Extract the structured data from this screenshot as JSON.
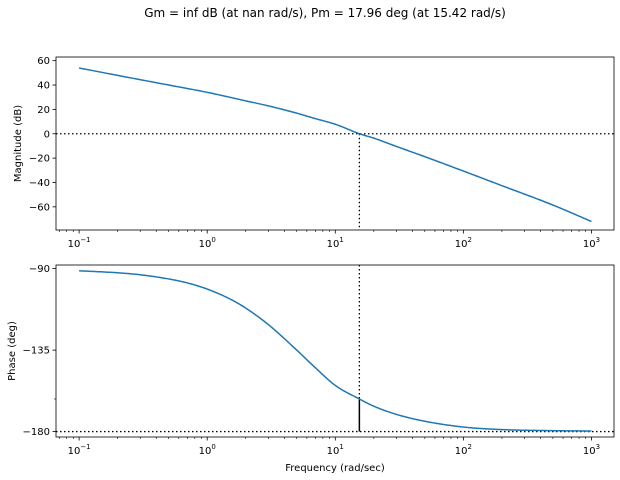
{
  "chart_data": {
    "title": "Gm = inf dB (at nan rad/s), Pm = 17.96 deg (at 15.42 rad/s)",
    "type": "line",
    "x_scale": "log",
    "xlabel": "Frequency (rad/sec)",
    "xlim": [
      0.066,
      1500
    ],
    "x_ticks": [
      {
        "value": 0.1,
        "base": "10",
        "exp": "−1"
      },
      {
        "value": 1,
        "base": "10",
        "exp": "0"
      },
      {
        "value": 10,
        "base": "10",
        "exp": "1"
      },
      {
        "value": 100,
        "base": "10",
        "exp": "2"
      },
      {
        "value": 1000,
        "base": "10",
        "exp": "3"
      }
    ],
    "line_color": "#1f77b4",
    "gain_crossover_freq": 15.42,
    "phase_margin_deg": 17.96,
    "panels": [
      {
        "id": "magnitude",
        "ylabel": "Magnitude (dB)",
        "ylim": [
          -79,
          63
        ],
        "y_ticks": [
          60,
          40,
          20,
          0,
          -20,
          -40,
          -60
        ],
        "y_tick_labels": [
          "60",
          "40",
          "20",
          "0",
          "−20",
          "−40",
          "−60"
        ],
        "reference_line_y": 0,
        "series": {
          "x": [
            0.1,
            0.2,
            0.5,
            1,
            2,
            3,
            5,
            7,
            10,
            15.42,
            20,
            30,
            50,
            100,
            200,
            500,
            1000
          ],
          "y": [
            54,
            47.9,
            40,
            34,
            27,
            22.9,
            16.9,
            12.4,
            7.8,
            0,
            -3.6,
            -10.4,
            -18.8,
            -30.6,
            -42.6,
            -58.5,
            -72
          ]
        }
      },
      {
        "id": "phase",
        "ylabel": "Phase (deg)",
        "ylim": [
          -183,
          -88
        ],
        "y_ticks": [
          -90,
          -135,
          -180
        ],
        "y_tick_labels": [
          "−90",
          "−135",
          "−180"
        ],
        "minor_y_ticks": [
          -162
        ],
        "reference_line_y": -180,
        "series": {
          "x": [
            0.1,
            0.2,
            0.3,
            0.5,
            0.7,
            1,
            1.5,
            2,
            3,
            5,
            7,
            10,
            15.42,
            20,
            30,
            50,
            100,
            200,
            500,
            1000
          ],
          "y": [
            -91.2,
            -92.3,
            -93.4,
            -95.7,
            -97.9,
            -101.3,
            -106.7,
            -111.8,
            -120.9,
            -135,
            -144.8,
            -154.5,
            -162,
            -166,
            -170.5,
            -174.3,
            -177.5,
            -178.9,
            -179.5,
            -179.7
          ]
        }
      }
    ]
  }
}
